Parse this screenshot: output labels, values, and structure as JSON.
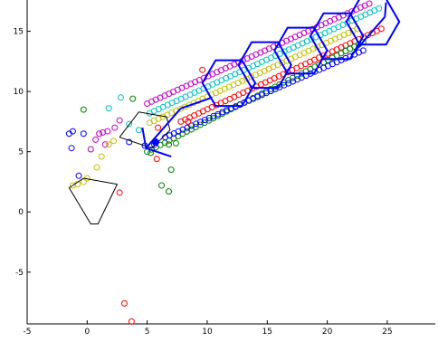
{
  "chart_data": {
    "type": "scatter",
    "title": "",
    "xlabel": "",
    "ylabel": "",
    "xlim": [
      -5,
      29
    ],
    "ylim": [
      -9.3,
      17.6
    ],
    "grid": true,
    "grid_style": "dotted",
    "x_ticks": [
      -5,
      0,
      5,
      10,
      15,
      20,
      25
    ],
    "x_tick_labels": [
      "-5",
      "0",
      "5",
      "10",
      "15",
      "20",
      "25"
    ],
    "y_ticks": [
      -5,
      0,
      5,
      10,
      15
    ],
    "y_tick_labels": [
      "-5",
      "0",
      "5",
      "10",
      "15"
    ],
    "colors": {
      "magenta": "#c000c0",
      "cyan": "#00c0c0",
      "yellow": "#c0c000",
      "red": "#ff0000",
      "green": "#008000",
      "blue": "#0000ff",
      "black": "#000000"
    },
    "bands": [
      {
        "color": "magenta",
        "start": [
          5.0,
          9.0
        ],
        "end": [
          23.5,
          17.3
        ],
        "count": 52
      },
      {
        "color": "cyan",
        "start": [
          5.2,
          8.2
        ],
        "end": [
          24.3,
          16.9
        ],
        "count": 52
      },
      {
        "color": "yellow",
        "start": [
          5.2,
          7.4
        ],
        "end": [
          22.5,
          15.2
        ],
        "count": 48
      },
      {
        "color": "red",
        "start": [
          7.8,
          7.5
        ],
        "end": [
          24.5,
          15.2
        ],
        "count": 46
      },
      {
        "color": "green",
        "start": [
          5.0,
          5.0
        ],
        "end": [
          23.0,
          14.1
        ],
        "count": 50
      },
      {
        "color": "blue",
        "start": [
          6.5,
          6.2
        ],
        "end": [
          23.0,
          13.4
        ],
        "count": 46
      }
    ],
    "scattered_points": [
      {
        "color": "blue",
        "x": -1.5,
        "y": 6.5
      },
      {
        "color": "blue",
        "x": -1.2,
        "y": 6.7
      },
      {
        "color": "blue",
        "x": -1.3,
        "y": 5.3
      },
      {
        "color": "blue",
        "x": -0.3,
        "y": 6.5
      },
      {
        "color": "blue",
        "x": -0.7,
        "y": 3.0
      },
      {
        "color": "blue",
        "x": 3.5,
        "y": 5.8
      },
      {
        "color": "blue",
        "x": 4.8,
        "y": 5.5
      },
      {
        "color": "blue",
        "x": 5.6,
        "y": 5.6
      },
      {
        "color": "magenta",
        "x": 0.7,
        "y": 6.0
      },
      {
        "color": "magenta",
        "x": 1.0,
        "y": 6.5
      },
      {
        "color": "magenta",
        "x": 1.3,
        "y": 6.6
      },
      {
        "color": "magenta",
        "x": 1.7,
        "y": 6.7
      },
      {
        "color": "magenta",
        "x": 2.3,
        "y": 7.0
      },
      {
        "color": "magenta",
        "x": 2.7,
        "y": 7.6
      },
      {
        "color": "magenta",
        "x": 0.3,
        "y": 5.2
      },
      {
        "color": "magenta",
        "x": 1.5,
        "y": 5.6
      },
      {
        "color": "cyan",
        "x": 1.8,
        "y": 8.6
      },
      {
        "color": "cyan",
        "x": 2.8,
        "y": 9.5
      },
      {
        "color": "cyan",
        "x": 3.5,
        "y": 7.3
      },
      {
        "color": "cyan",
        "x": 4.3,
        "y": 6.8
      },
      {
        "color": "yellow",
        "x": -1.2,
        "y": 2.2
      },
      {
        "color": "yellow",
        "x": -0.8,
        "y": 2.3
      },
      {
        "color": "yellow",
        "x": -0.3,
        "y": 2.5
      },
      {
        "color": "yellow",
        "x": 0.0,
        "y": 2.8
      },
      {
        "color": "yellow",
        "x": 0.8,
        "y": 3.7
      },
      {
        "color": "yellow",
        "x": 1.2,
        "y": 4.6
      },
      {
        "color": "yellow",
        "x": 1.8,
        "y": 5.6
      },
      {
        "color": "yellow",
        "x": 2.2,
        "y": 5.9
      },
      {
        "color": "green",
        "x": -0.3,
        "y": 8.5
      },
      {
        "color": "green",
        "x": 3.8,
        "y": 9.4
      },
      {
        "color": "green",
        "x": 5.3,
        "y": 4.9
      },
      {
        "color": "green",
        "x": 6.2,
        "y": 2.2
      },
      {
        "color": "green",
        "x": 6.8,
        "y": 1.7
      },
      {
        "color": "green",
        "x": 7.0,
        "y": 3.5
      },
      {
        "color": "green",
        "x": 6.8,
        "y": 5.6
      },
      {
        "color": "green",
        "x": 7.4,
        "y": 5.7
      },
      {
        "color": "red",
        "x": 2.7,
        "y": 1.6
      },
      {
        "color": "red",
        "x": 3.1,
        "y": -7.6
      },
      {
        "color": "red",
        "x": 3.7,
        "y": -9.1
      },
      {
        "color": "red",
        "x": 5.8,
        "y": 4.4
      },
      {
        "color": "red",
        "x": 8.4,
        "y": 7.5
      },
      {
        "color": "red",
        "x": 9.6,
        "y": 11.8
      },
      {
        "color": "red",
        "x": 5.9,
        "y": 7.0
      }
    ],
    "hexagons": [
      {
        "color": "blue",
        "center": [
          11.8,
          10.7
        ]
      },
      {
        "color": "blue",
        "center": [
          14.8,
          12.2
        ]
      },
      {
        "color": "blue",
        "center": [
          17.8,
          13.4
        ]
      },
      {
        "color": "blue",
        "center": [
          20.8,
          14.6
        ]
      },
      {
        "color": "blue",
        "center": [
          23.8,
          15.8
        ]
      }
    ],
    "hexagon_radius": 2.2,
    "blue_segments": [
      {
        "start": [
          4.9,
          5.3
        ],
        "end": [
          7.8,
          8.6
        ]
      },
      {
        "start": [
          7.8,
          8.6
        ],
        "end": [
          10.4,
          9.5
        ]
      },
      {
        "start": [
          4.9,
          5.3
        ],
        "end": [
          7.0,
          4.6
        ]
      },
      {
        "start": [
          4.9,
          5.3
        ],
        "end": [
          4.6,
          7.0
        ]
      },
      {
        "start": [
          22.0,
          13.0
        ],
        "end": [
          24.8,
          16.2
        ]
      },
      {
        "start": [
          24.8,
          16.2
        ],
        "end": [
          24.9,
          17.4
        ]
      }
    ],
    "black_polygon": [
      [
        -0.3,
        2.8
      ],
      [
        2.5,
        2.3
      ],
      [
        0.9,
        -1.0
      ],
      [
        0.3,
        -1.0
      ],
      [
        -1.5,
        2.0
      ],
      [
        -0.3,
        2.8
      ]
    ],
    "black_polyline": [
      [
        2.7,
        6.2
      ],
      [
        4.3,
        8.3
      ],
      [
        6.6,
        7.9
      ],
      [
        6.9,
        6.8
      ],
      [
        5.4,
        5.3
      ],
      [
        2.7,
        6.2
      ]
    ],
    "blue_marker": {
      "x": 5.7,
      "y": 5.8
    }
  }
}
